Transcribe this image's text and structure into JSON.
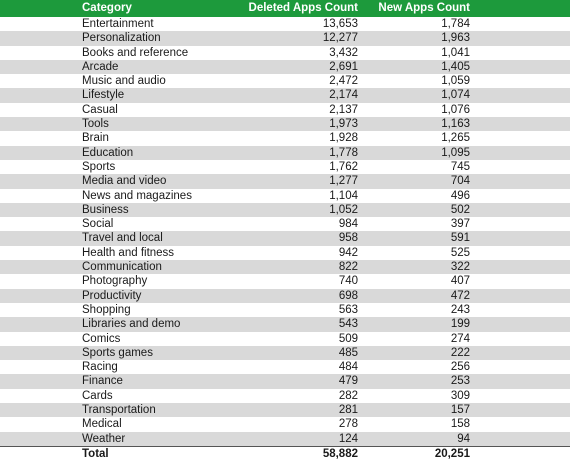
{
  "table": {
    "headers": {
      "category": "Category",
      "deleted": "Deleted Apps Count",
      "new": "New Apps Count"
    },
    "rows": [
      {
        "category": "Entertainment",
        "deleted": "13,653",
        "new": "1,784"
      },
      {
        "category": "Personalization",
        "deleted": "12,277",
        "new": "1,963"
      },
      {
        "category": "Books and reference",
        "deleted": "3,432",
        "new": "1,041"
      },
      {
        "category": "Arcade",
        "deleted": "2,691",
        "new": "1,405"
      },
      {
        "category": "Music and audio",
        "deleted": "2,472",
        "new": "1,059"
      },
      {
        "category": "Lifestyle",
        "deleted": "2,174",
        "new": "1,074"
      },
      {
        "category": "Casual",
        "deleted": "2,137",
        "new": "1,076"
      },
      {
        "category": "Tools",
        "deleted": "1,973",
        "new": "1,163"
      },
      {
        "category": "Brain",
        "deleted": "1,928",
        "new": "1,265"
      },
      {
        "category": "Education",
        "deleted": "1,778",
        "new": "1,095"
      },
      {
        "category": "Sports",
        "deleted": "1,762",
        "new": "745"
      },
      {
        "category": "Media and video",
        "deleted": "1,277",
        "new": "704"
      },
      {
        "category": "News and magazines",
        "deleted": "1,104",
        "new": "496"
      },
      {
        "category": "Business",
        "deleted": "1,052",
        "new": "502"
      },
      {
        "category": "Social",
        "deleted": "984",
        "new": "397"
      },
      {
        "category": "Travel and local",
        "deleted": "958",
        "new": "591"
      },
      {
        "category": "Health and fitness",
        "deleted": "942",
        "new": "525"
      },
      {
        "category": "Communication",
        "deleted": "822",
        "new": "322"
      },
      {
        "category": "Photography",
        "deleted": "740",
        "new": "407"
      },
      {
        "category": "Productivity",
        "deleted": "698",
        "new": "472"
      },
      {
        "category": "Shopping",
        "deleted": "563",
        "new": "243"
      },
      {
        "category": "Libraries and demo",
        "deleted": "543",
        "new": "199"
      },
      {
        "category": "Comics",
        "deleted": "509",
        "new": "274"
      },
      {
        "category": "Sports games",
        "deleted": "485",
        "new": "222"
      },
      {
        "category": "Racing",
        "deleted": "484",
        "new": "256"
      },
      {
        "category": "Finance",
        "deleted": "479",
        "new": "253"
      },
      {
        "category": "Cards",
        "deleted": "282",
        "new": "309"
      },
      {
        "category": "Transportation",
        "deleted": "281",
        "new": "157"
      },
      {
        "category": "Medical",
        "deleted": "278",
        "new": "158"
      },
      {
        "category": "Weather",
        "deleted": "124",
        "new": "94"
      }
    ],
    "total": {
      "category": "Total",
      "deleted": "58,882",
      "new": "20,251"
    }
  },
  "colors": {
    "header_bg": "#1d9a3c",
    "stripe": "#d9d9d9"
  }
}
